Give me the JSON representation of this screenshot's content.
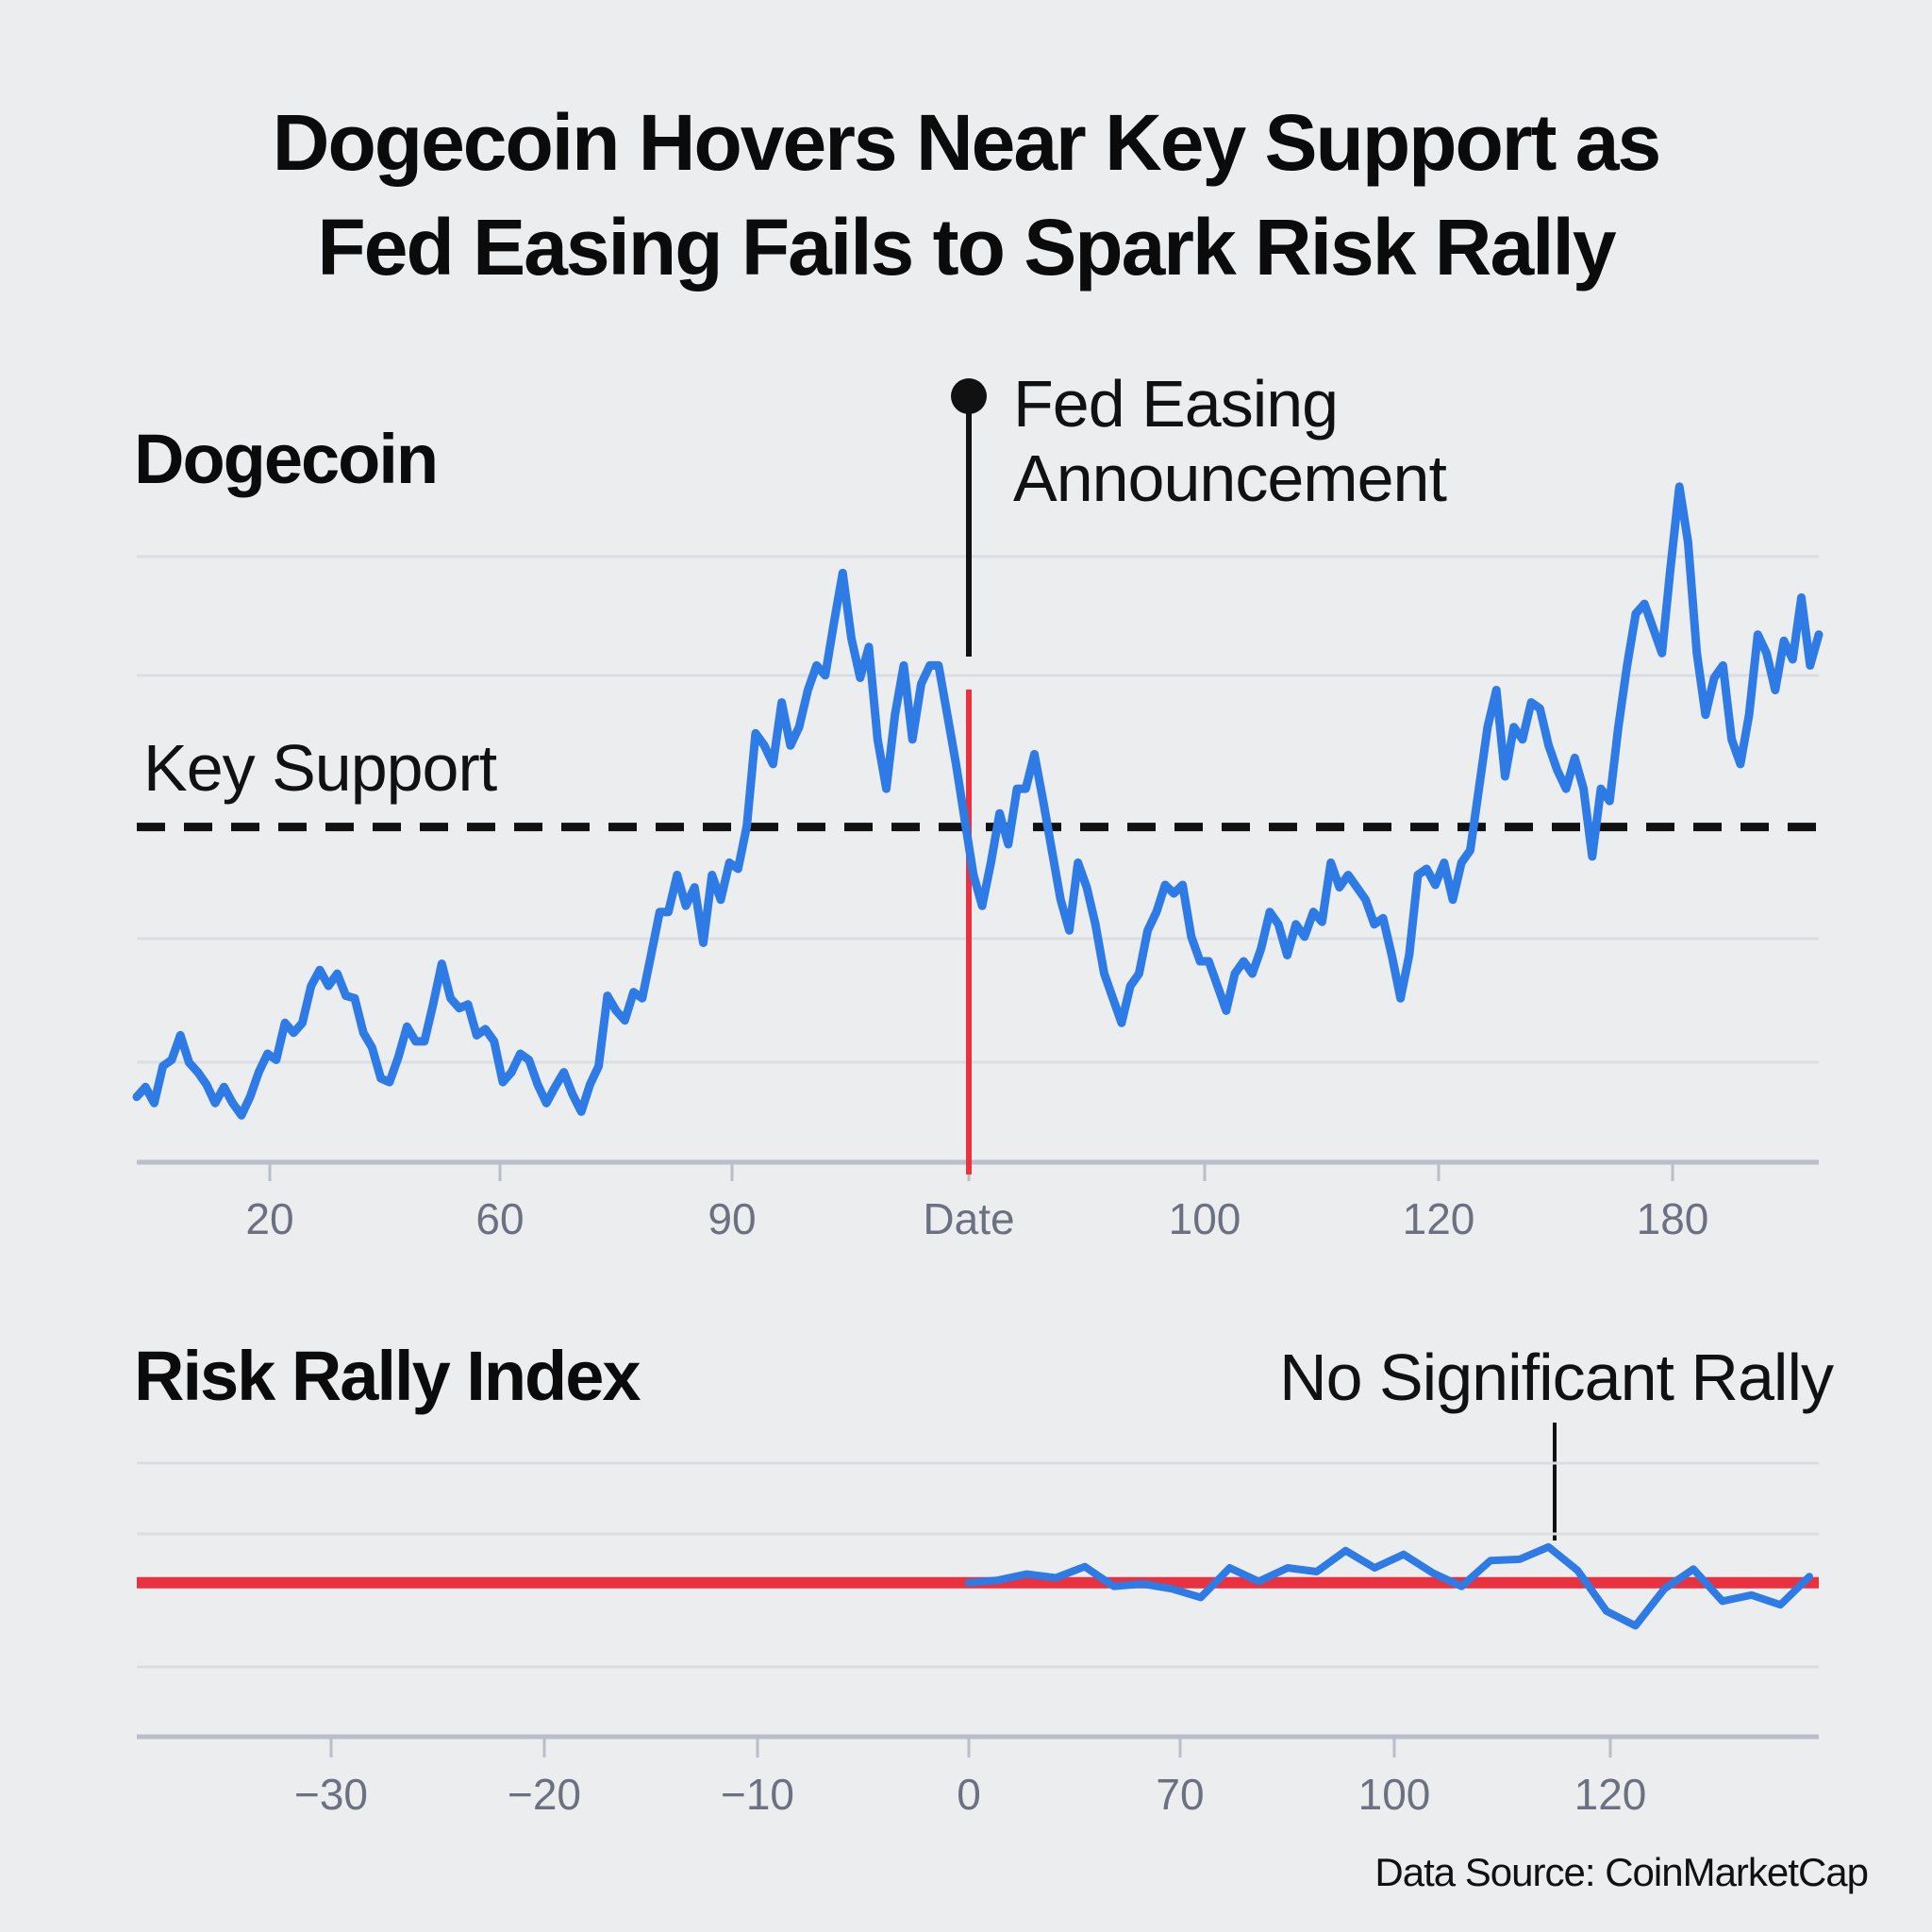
{
  "title_lines": [
    "Dogecoin Hovers Near Key Support as",
    "Fed Easing Fails to Spark Risk Rally"
  ],
  "source": "Data Source: CoinMarketCap",
  "colors": {
    "background": "#ecedef",
    "line": "#2f7be6",
    "event": "#e8323f",
    "support": "#111111",
    "grid": "#d9dce1",
    "axis": "#b9bec8"
  },
  "chart_data": [
    {
      "type": "line",
      "title": "Dogecoin",
      "xlabel": "",
      "ylabel": "",
      "x_tick_labels": [
        "20",
        "60",
        "90",
        "Date",
        "100",
        "120",
        "180"
      ],
      "ylim": [
        0,
        600
      ],
      "grid": true,
      "support": {
        "label": "Key Support",
        "value": 272,
        "style": "dashed"
      },
      "event": {
        "label_lines": [
          "Fed Easing",
          "Announcement"
        ],
        "at_tick": "Date"
      },
      "series": [
        {
          "values": [
            53,
            61,
            48,
            78,
            83,
            103,
            81,
            73,
            63,
            48,
            61,
            48,
            38,
            53,
            73,
            88,
            83,
            113,
            105,
            113,
            143,
            156,
            143,
            153,
            135,
            133,
            105,
            93,
            68,
            65,
            85,
            110,
            98,
            98,
            128,
            161,
            133,
            125,
            128,
            103,
            108,
            98,
            65,
            73,
            88,
            83,
            63,
            48,
            61,
            73,
            55,
            41,
            63,
            78,
            135,
            123,
            115,
            138,
            133,
            168,
            203,
            203,
            233,
            208,
            223,
            178,
            233,
            213,
            243,
            238,
            273,
            348,
            338,
            323,
            373,
            338,
            353,
            383,
            403,
            395,
            438,
            478,
            425,
            393,
            418,
            343,
            303,
            363,
            403,
            343,
            388,
            403,
            403,
            363,
            323,
            278,
            233,
            208,
            243,
            283,
            258,
            303,
            303,
            331,
            293,
            253,
            213,
            188,
            243,
            223,
            193,
            153,
            133,
            113,
            143,
            153,
            188,
            203,
            225,
            218,
            225,
            183,
            163,
            163,
            143,
            123,
            153,
            163,
            153,
            173,
            203,
            193,
            168,
            193,
            183,
            203,
            195,
            243,
            223,
            233,
            223,
            213,
            193,
            198,
            168,
            133,
            168,
            233,
            238,
            225,
            243,
            213,
            243,
            253,
            303,
            353,
            383,
            313,
            353,
            343,
            373,
            368,
            338,
            318,
            303,
            328,
            303,
            248,
            303,
            293,
            353,
            403,
            445,
            453,
            433,
            413,
            483,
            548,
            503,
            413,
            363,
            393,
            403,
            343,
            323,
            363,
            428,
            413,
            383,
            423,
            408,
            458,
            403,
            428
          ]
        }
      ]
    },
    {
      "type": "line",
      "title": "Risk Rally Index",
      "xlabel": "",
      "ylabel": "",
      "x_tick_labels": [
        "−30",
        "−20",
        "−10",
        "0",
        "70",
        "100",
        "120"
      ],
      "ylim": [
        -125,
        97
      ],
      "grid": true,
      "baseline": {
        "value": 0
      },
      "annotation": "No Significant Rally",
      "series": [
        {
          "values": [
            0,
            2,
            7,
            4,
            13,
            -3,
            -1,
            -5,
            -12,
            12,
            1,
            12,
            9,
            26,
            12,
            23,
            8,
            -3,
            18,
            19,
            29,
            10,
            -23,
            -35,
            -5,
            11,
            -15,
            -10,
            -18,
            5
          ]
        }
      ]
    }
  ]
}
